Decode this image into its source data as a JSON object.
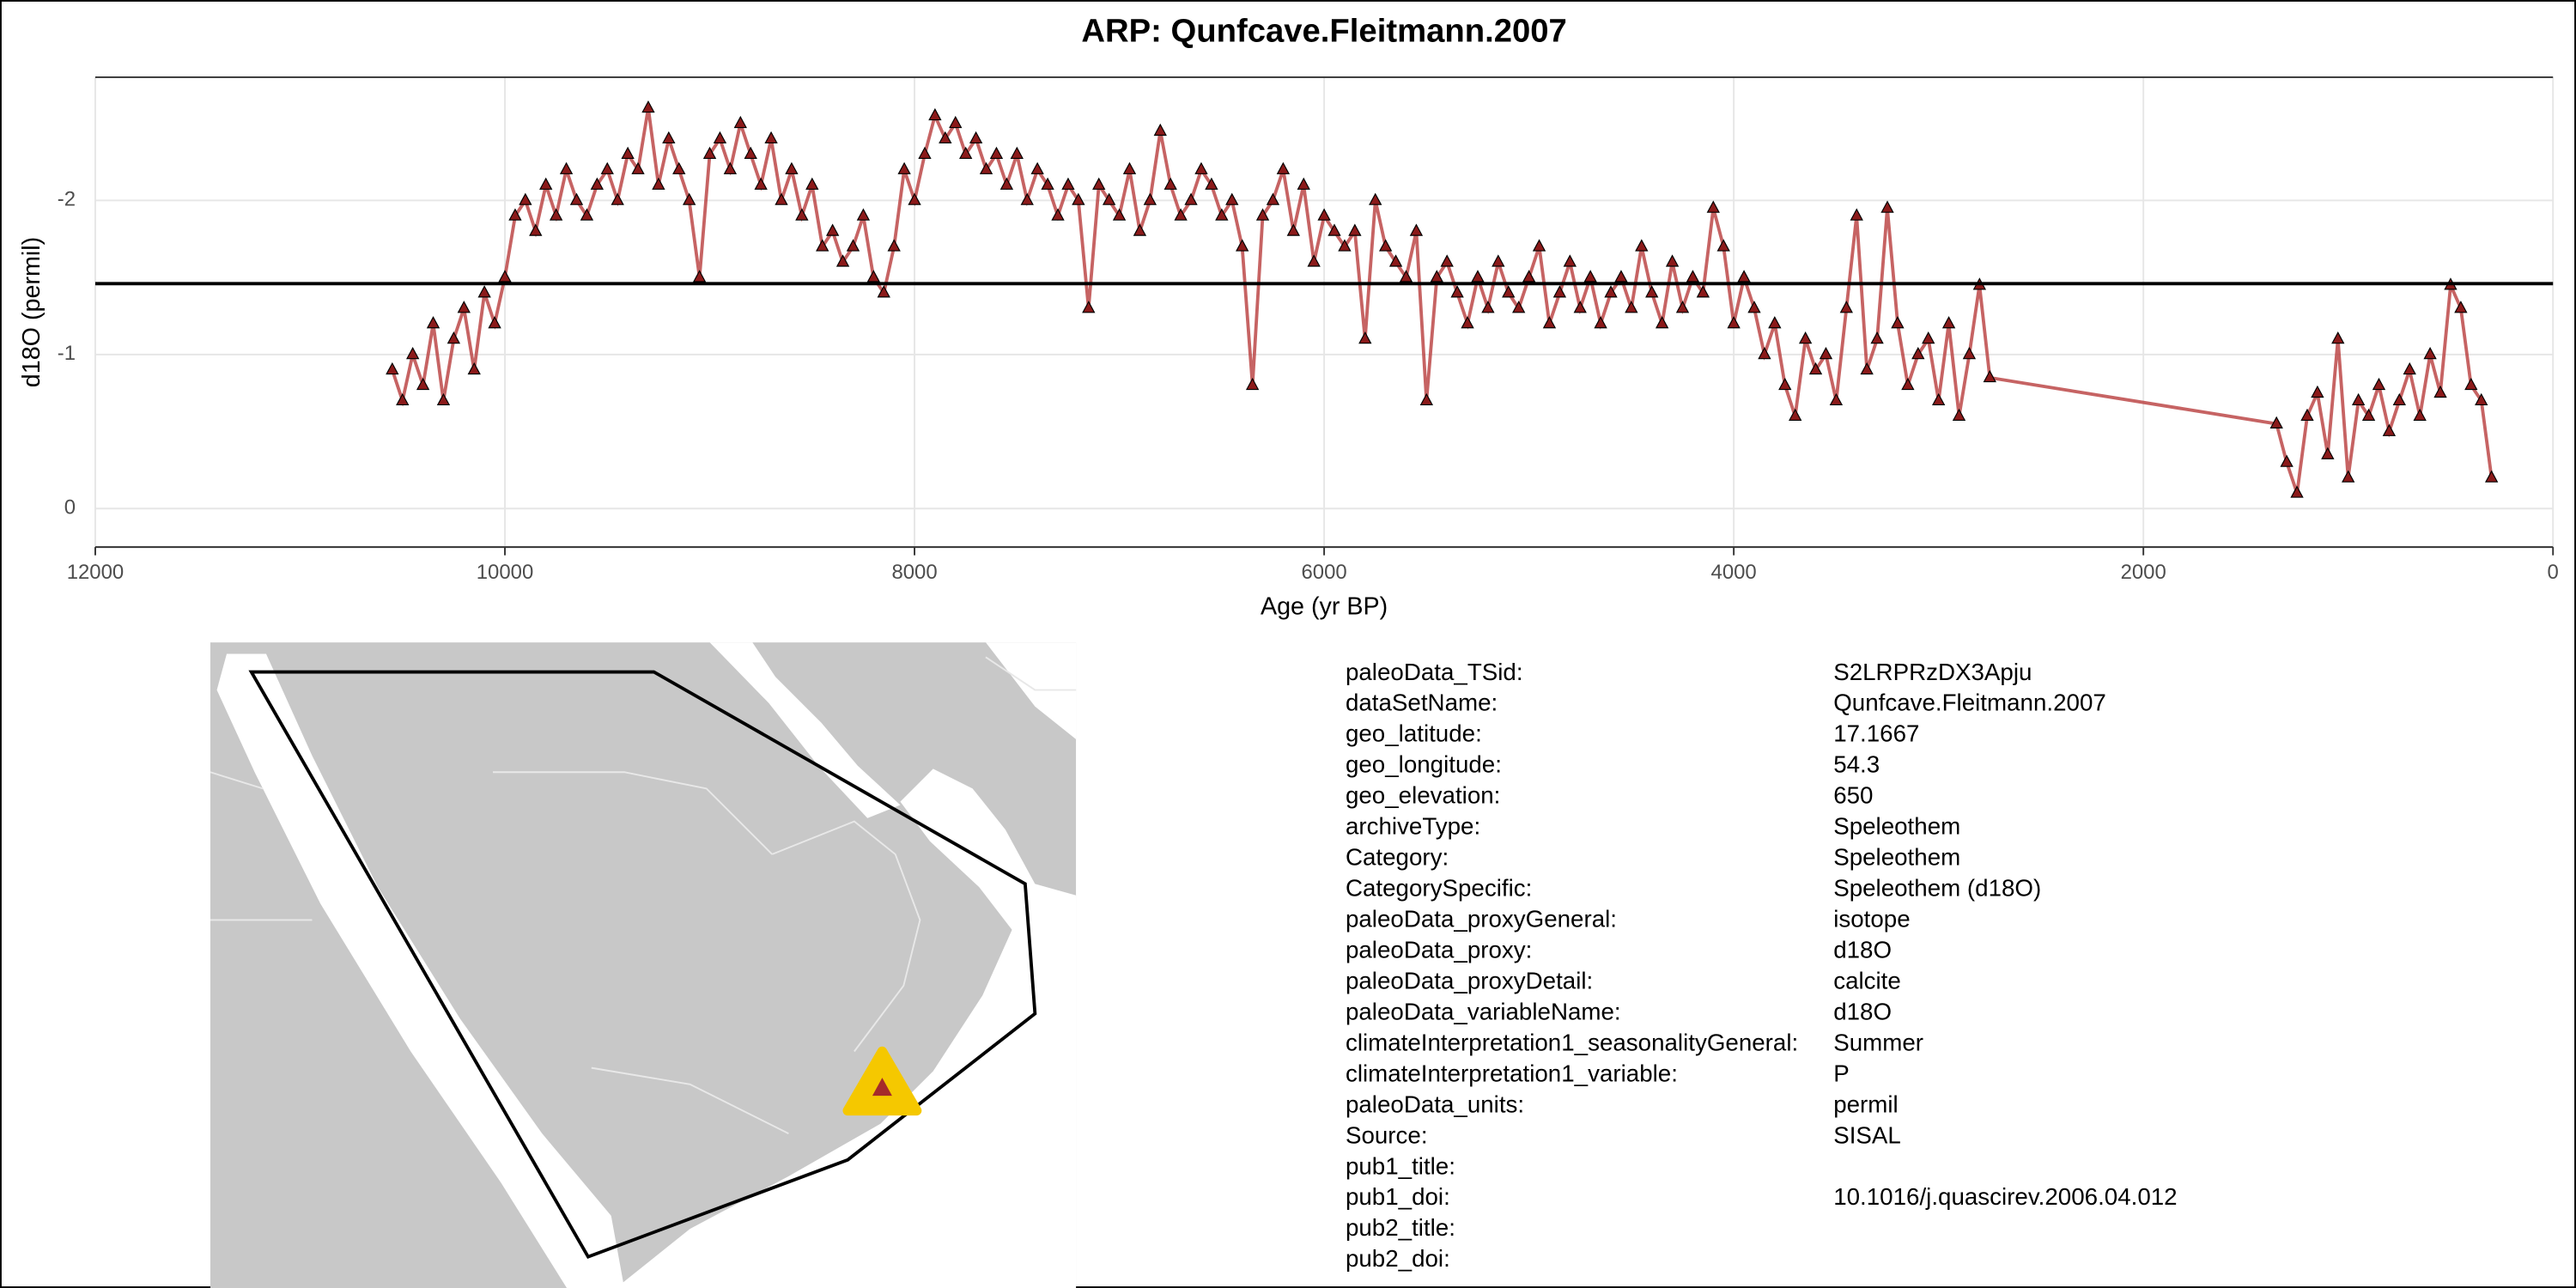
{
  "chart_data": {
    "type": "line",
    "title": "ARP: Qunfcave.Fleitmann.2007",
    "x_label": "Age (yr BP)",
    "y_label": "d18O (permil)",
    "color": "#b83c3c",
    "marker_color": "#8b1a1a",
    "hline": -1.46,
    "xlim": [
      12000,
      0
    ],
    "ylim": [
      0.25,
      -2.8
    ],
    "xticks": [
      12000,
      10000,
      8000,
      6000,
      4000,
      2000,
      0
    ],
    "yticks": [
      -2,
      -1,
      0
    ],
    "grid": true,
    "x": [
      10550,
      10500,
      10450,
      10400,
      10350,
      10300,
      10250,
      10200,
      10150,
      10100,
      10050,
      10000,
      9950,
      9900,
      9850,
      9800,
      9750,
      9700,
      9650,
      9600,
      9550,
      9500,
      9450,
      9400,
      9350,
      9300,
      9250,
      9200,
      9150,
      9100,
      9050,
      9000,
      8950,
      8900,
      8850,
      8800,
      8750,
      8700,
      8650,
      8600,
      8550,
      8500,
      8450,
      8400,
      8350,
      8300,
      8250,
      8200,
      8150,
      8100,
      8050,
      8000,
      7950,
      7900,
      7850,
      7800,
      7750,
      7700,
      7650,
      7600,
      7550,
      7500,
      7450,
      7400,
      7350,
      7300,
      7250,
      7200,
      7150,
      7100,
      7050,
      7000,
      6950,
      6900,
      6850,
      6800,
      6750,
      6700,
      6650,
      6600,
      6550,
      6500,
      6450,
      6400,
      6350,
      6300,
      6250,
      6200,
      6150,
      6100,
      6050,
      6000,
      5950,
      5900,
      5850,
      5800,
      5750,
      5700,
      5650,
      5600,
      5550,
      5500,
      5450,
      5400,
      5350,
      5300,
      5250,
      5200,
      5150,
      5100,
      5050,
      5000,
      4950,
      4900,
      4850,
      4800,
      4750,
      4700,
      4650,
      4600,
      4550,
      4500,
      4450,
      4400,
      4350,
      4300,
      4250,
      4200,
      4150,
      4100,
      4050,
      4000,
      3950,
      3900,
      3850,
      3800,
      3750,
      3700,
      3650,
      3600,
      3550,
      3500,
      3450,
      3400,
      3350,
      3300,
      3250,
      3200,
      3150,
      3100,
      3050,
      3000,
      2950,
      2900,
      2850,
      2800,
      2750,
      1350,
      1300,
      1250,
      1200,
      1150,
      1100,
      1050,
      1000,
      950,
      900,
      850,
      800,
      750,
      700,
      650,
      600,
      550,
      500,
      450,
      400,
      350,
      300
    ],
    "values": [
      -0.9,
      -0.7,
      -1.0,
      -0.8,
      -1.2,
      -0.7,
      -1.1,
      -1.3,
      -0.9,
      -1.4,
      -1.2,
      -1.5,
      -1.9,
      -2.0,
      -1.8,
      -2.1,
      -1.9,
      -2.2,
      -2.0,
      -1.9,
      -2.1,
      -2.2,
      -2.0,
      -2.3,
      -2.2,
      -2.6,
      -2.1,
      -2.4,
      -2.2,
      -2.0,
      -1.5,
      -2.3,
      -2.4,
      -2.2,
      -2.5,
      -2.3,
      -2.1,
      -2.4,
      -2.0,
      -2.2,
      -1.9,
      -2.1,
      -1.7,
      -1.8,
      -1.6,
      -1.7,
      -1.9,
      -1.5,
      -1.4,
      -1.7,
      -2.2,
      -2.0,
      -2.3,
      -2.55,
      -2.4,
      -2.5,
      -2.3,
      -2.4,
      -2.2,
      -2.3,
      -2.1,
      -2.3,
      -2.0,
      -2.2,
      -2.1,
      -1.9,
      -2.1,
      -2.0,
      -1.3,
      -2.1,
      -2.0,
      -1.9,
      -2.2,
      -1.8,
      -2.0,
      -2.45,
      -2.1,
      -1.9,
      -2.0,
      -2.2,
      -2.1,
      -1.9,
      -2.0,
      -1.7,
      -0.8,
      -1.9,
      -2.0,
      -2.2,
      -1.8,
      -2.1,
      -1.6,
      -1.9,
      -1.8,
      -1.7,
      -1.8,
      -1.1,
      -2.0,
      -1.7,
      -1.6,
      -1.5,
      -1.8,
      -0.7,
      -1.5,
      -1.6,
      -1.4,
      -1.2,
      -1.5,
      -1.3,
      -1.6,
      -1.4,
      -1.3,
      -1.5,
      -1.7,
      -1.2,
      -1.4,
      -1.6,
      -1.3,
      -1.5,
      -1.2,
      -1.4,
      -1.5,
      -1.3,
      -1.7,
      -1.4,
      -1.2,
      -1.6,
      -1.3,
      -1.5,
      -1.4,
      -1.95,
      -1.7,
      -1.2,
      -1.5,
      -1.3,
      -1.0,
      -1.2,
      -0.8,
      -0.6,
      -1.1,
      -0.9,
      -1.0,
      -0.7,
      -1.3,
      -1.9,
      -0.9,
      -1.1,
      -1.95,
      -1.2,
      -0.8,
      -1.0,
      -1.1,
      -0.7,
      -1.2,
      -0.6,
      -1.0,
      -1.45,
      -0.85,
      -0.55,
      -0.3,
      -0.1,
      -0.6,
      -0.75,
      -0.35,
      -1.1,
      -0.2,
      -0.7,
      -0.6,
      -0.8,
      -0.5,
      -0.7,
      -0.9,
      -0.6,
      -1.0,
      -0.75,
      -1.45,
      -1.3,
      -0.8,
      -0.7,
      -0.2
    ]
  },
  "metadata": {
    "rows": [
      [
        "paleoData_TSid:",
        "S2LRPRzDX3Apju"
      ],
      [
        "dataSetName:",
        "Qunfcave.Fleitmann.2007"
      ],
      [
        "geo_latitude:",
        "17.1667"
      ],
      [
        "geo_longitude:",
        "54.3"
      ],
      [
        "geo_elevation:",
        "650"
      ],
      [
        "archiveType:",
        "Speleothem"
      ],
      [
        "Category:",
        "Speleothem"
      ],
      [
        "CategorySpecific:",
        "Speleothem (d18O)"
      ],
      [
        "paleoData_proxyGeneral:",
        "isotope"
      ],
      [
        "paleoData_proxy:",
        "d18O"
      ],
      [
        "paleoData_proxyDetail:",
        "calcite"
      ],
      [
        "paleoData_variableName:",
        "d18O"
      ],
      [
        "climateInterpretation1_seasonalityGeneral:",
        "Summer"
      ],
      [
        "climateInterpretation1_variable:",
        "P"
      ],
      [
        "paleoData_units:",
        "permil"
      ],
      [
        "Source:",
        "SISAL"
      ],
      [
        "pub1_title:"
      ],
      [
        "pub1_doi:",
        "10.1016/j.quascirev.2006.04.012"
      ],
      [
        "pub2_title:"
      ],
      [
        "pub2_doi:"
      ]
    ]
  }
}
